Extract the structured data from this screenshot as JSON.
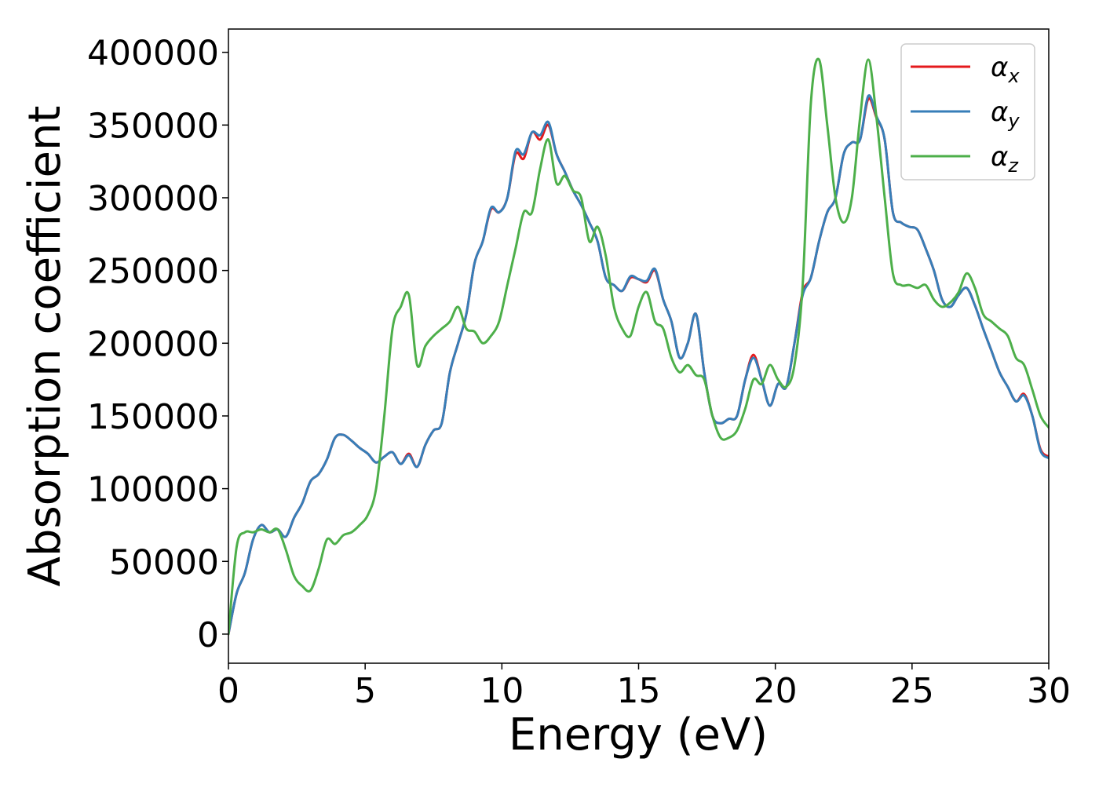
{
  "chart_data": {
    "type": "line",
    "title": "",
    "xlabel": "Energy (eV)",
    "ylabel": "Absorption coefficient",
    "xlim": [
      0,
      30
    ],
    "ylim": [
      -20000,
      416000
    ],
    "xticks": [
      "0",
      "5",
      "10",
      "15",
      "20",
      "25",
      "30"
    ],
    "xtick_values": [
      0,
      5,
      10,
      15,
      20,
      25,
      30
    ],
    "yticks": [
      "0",
      "50000",
      "100000",
      "150000",
      "200000",
      "250000",
      "300000",
      "350000",
      "400000"
    ],
    "ytick_values": [
      0,
      50000,
      100000,
      150000,
      200000,
      250000,
      300000,
      350000,
      400000
    ],
    "grid": false,
    "legend_position": "top-right",
    "series": [
      {
        "name": "α_x",
        "label_main": "α",
        "label_sub": "x",
        "color": "#e41a1c",
        "x": [
          0,
          0.3,
          0.6,
          0.9,
          1.2,
          1.5,
          1.8,
          2.1,
          2.4,
          2.7,
          3.0,
          3.3,
          3.6,
          3.9,
          4.2,
          4.5,
          4.8,
          5.1,
          5.4,
          5.7,
          6.0,
          6.3,
          6.6,
          6.9,
          7.2,
          7.5,
          7.8,
          8.1,
          8.4,
          8.7,
          9.0,
          9.3,
          9.6,
          9.9,
          10.2,
          10.5,
          10.8,
          11.1,
          11.4,
          11.7,
          12.0,
          12.3,
          12.6,
          12.9,
          13.2,
          13.5,
          13.8,
          14.1,
          14.4,
          14.7,
          15.0,
          15.3,
          15.6,
          15.9,
          16.2,
          16.5,
          16.8,
          17.1,
          17.4,
          17.7,
          18.0,
          18.3,
          18.6,
          18.9,
          19.2,
          19.5,
          19.8,
          20.1,
          20.4,
          20.7,
          21.0,
          21.3,
          21.6,
          21.9,
          22.2,
          22.5,
          22.8,
          23.1,
          23.4,
          23.7,
          24.0,
          24.3,
          24.6,
          24.9,
          25.2,
          25.5,
          25.8,
          26.1,
          26.4,
          26.7,
          27.0,
          27.3,
          27.6,
          27.9,
          28.2,
          28.5,
          28.8,
          29.1,
          29.4,
          29.7,
          30.0
        ],
        "y": [
          0,
          28000,
          42000,
          65000,
          75000,
          70000,
          72000,
          67000,
          80000,
          90000,
          105000,
          110000,
          120000,
          135000,
          137000,
          133000,
          128000,
          124000,
          118000,
          122000,
          125000,
          117000,
          124000,
          115000,
          130000,
          140000,
          145000,
          180000,
          200000,
          220000,
          255000,
          270000,
          292000,
          290000,
          300000,
          330000,
          327000,
          345000,
          340000,
          350000,
          330000,
          318000,
          305000,
          295000,
          283000,
          270000,
          245000,
          240000,
          236000,
          245000,
          244000,
          242000,
          250000,
          230000,
          215000,
          190000,
          200000,
          220000,
          180000,
          150000,
          145000,
          148000,
          150000,
          175000,
          192000,
          175000,
          157000,
          172000,
          170000,
          200000,
          235000,
          245000,
          270000,
          290000,
          300000,
          330000,
          338000,
          340000,
          368000,
          355000,
          340000,
          290000,
          283000,
          280000,
          278000,
          265000,
          250000,
          230000,
          225000,
          233000,
          238000,
          226000,
          210000,
          195000,
          180000,
          170000,
          160000,
          165000,
          150000,
          127000,
          122000
        ]
      },
      {
        "name": "α_y",
        "label_main": "α",
        "label_sub": "y",
        "color": "#377eb8",
        "x": [
          0,
          0.3,
          0.6,
          0.9,
          1.2,
          1.5,
          1.8,
          2.1,
          2.4,
          2.7,
          3.0,
          3.3,
          3.6,
          3.9,
          4.2,
          4.5,
          4.8,
          5.1,
          5.4,
          5.7,
          6.0,
          6.3,
          6.6,
          6.9,
          7.2,
          7.5,
          7.8,
          8.1,
          8.4,
          8.7,
          9.0,
          9.3,
          9.6,
          9.9,
          10.2,
          10.5,
          10.8,
          11.1,
          11.4,
          11.7,
          12.0,
          12.3,
          12.6,
          12.9,
          13.2,
          13.5,
          13.8,
          14.1,
          14.4,
          14.7,
          15.0,
          15.3,
          15.6,
          15.9,
          16.2,
          16.5,
          16.8,
          17.1,
          17.4,
          17.7,
          18.0,
          18.3,
          18.6,
          18.9,
          19.2,
          19.5,
          19.8,
          20.1,
          20.4,
          20.7,
          21.0,
          21.3,
          21.6,
          21.9,
          22.2,
          22.5,
          22.8,
          23.1,
          23.4,
          23.7,
          24.0,
          24.3,
          24.6,
          24.9,
          25.2,
          25.5,
          25.8,
          26.1,
          26.4,
          26.7,
          27.0,
          27.3,
          27.6,
          27.9,
          28.2,
          28.5,
          28.8,
          29.1,
          29.4,
          29.7,
          30.0
        ],
        "y": [
          0,
          28000,
          42000,
          65000,
          75000,
          70000,
          72000,
          67000,
          80000,
          90000,
          105000,
          110000,
          120000,
          135000,
          137000,
          133000,
          128000,
          124000,
          118000,
          122000,
          125000,
          117000,
          123000,
          115000,
          130000,
          140000,
          145000,
          180000,
          200000,
          220000,
          255000,
          270000,
          293000,
          290000,
          300000,
          332000,
          330000,
          345000,
          343000,
          352000,
          330000,
          318000,
          305000,
          295000,
          283000,
          270000,
          245000,
          240000,
          236000,
          246000,
          244000,
          243000,
          251000,
          230000,
          215000,
          190000,
          200000,
          220000,
          180000,
          150000,
          145000,
          148000,
          150000,
          175000,
          190000,
          175000,
          157000,
          172000,
          170000,
          200000,
          233000,
          245000,
          270000,
          290000,
          300000,
          330000,
          338000,
          340000,
          370000,
          356000,
          340000,
          290000,
          283000,
          280000,
          278000,
          265000,
          250000,
          230000,
          225000,
          233000,
          238000,
          226000,
          210000,
          195000,
          180000,
          170000,
          160000,
          164000,
          150000,
          126000,
          121000
        ]
      },
      {
        "name": "α_z",
        "label_main": "α",
        "label_sub": "z",
        "color": "#4daf4a",
        "x": [
          0,
          0.3,
          0.6,
          0.9,
          1.2,
          1.5,
          1.8,
          2.1,
          2.4,
          2.7,
          3.0,
          3.3,
          3.6,
          3.9,
          4.2,
          4.5,
          4.8,
          5.1,
          5.4,
          5.7,
          6.0,
          6.3,
          6.6,
          6.9,
          7.2,
          7.5,
          7.8,
          8.1,
          8.4,
          8.7,
          9.0,
          9.3,
          9.6,
          9.9,
          10.2,
          10.5,
          10.8,
          11.1,
          11.4,
          11.7,
          12.0,
          12.3,
          12.6,
          12.9,
          13.2,
          13.5,
          13.8,
          14.1,
          14.4,
          14.7,
          15.0,
          15.3,
          15.6,
          15.9,
          16.2,
          16.5,
          16.8,
          17.1,
          17.4,
          17.7,
          18.0,
          18.3,
          18.6,
          18.9,
          19.2,
          19.5,
          19.8,
          20.1,
          20.4,
          20.7,
          21.0,
          21.3,
          21.6,
          21.9,
          22.2,
          22.5,
          22.8,
          23.1,
          23.4,
          23.7,
          24.0,
          24.3,
          24.6,
          24.9,
          25.2,
          25.5,
          25.8,
          26.1,
          26.4,
          26.7,
          27.0,
          27.3,
          27.6,
          27.9,
          28.2,
          28.5,
          28.8,
          29.1,
          29.4,
          29.7,
          30.0
        ],
        "y": [
          0,
          60000,
          70000,
          70000,
          72000,
          70000,
          72000,
          58000,
          40000,
          33000,
          30000,
          45000,
          65000,
          62000,
          68000,
          70000,
          75000,
          82000,
          100000,
          150000,
          210000,
          225000,
          233000,
          185000,
          198000,
          205000,
          210000,
          215000,
          225000,
          210000,
          208000,
          200000,
          205000,
          215000,
          240000,
          265000,
          290000,
          290000,
          320000,
          340000,
          310000,
          315000,
          305000,
          300000,
          270000,
          280000,
          260000,
          225000,
          210000,
          205000,
          225000,
          235000,
          215000,
          210000,
          190000,
          180000,
          185000,
          178000,
          175000,
          150000,
          135000,
          135000,
          140000,
          155000,
          175000,
          172000,
          185000,
          175000,
          170000,
          185000,
          240000,
          365000,
          395000,
          350000,
          300000,
          283000,
          300000,
          355000,
          395000,
          355000,
          300000,
          248000,
          240000,
          240000,
          238000,
          240000,
          230000,
          225000,
          228000,
          235000,
          248000,
          238000,
          220000,
          215000,
          210000,
          205000,
          190000,
          185000,
          168000,
          150000,
          142000
        ]
      }
    ]
  }
}
